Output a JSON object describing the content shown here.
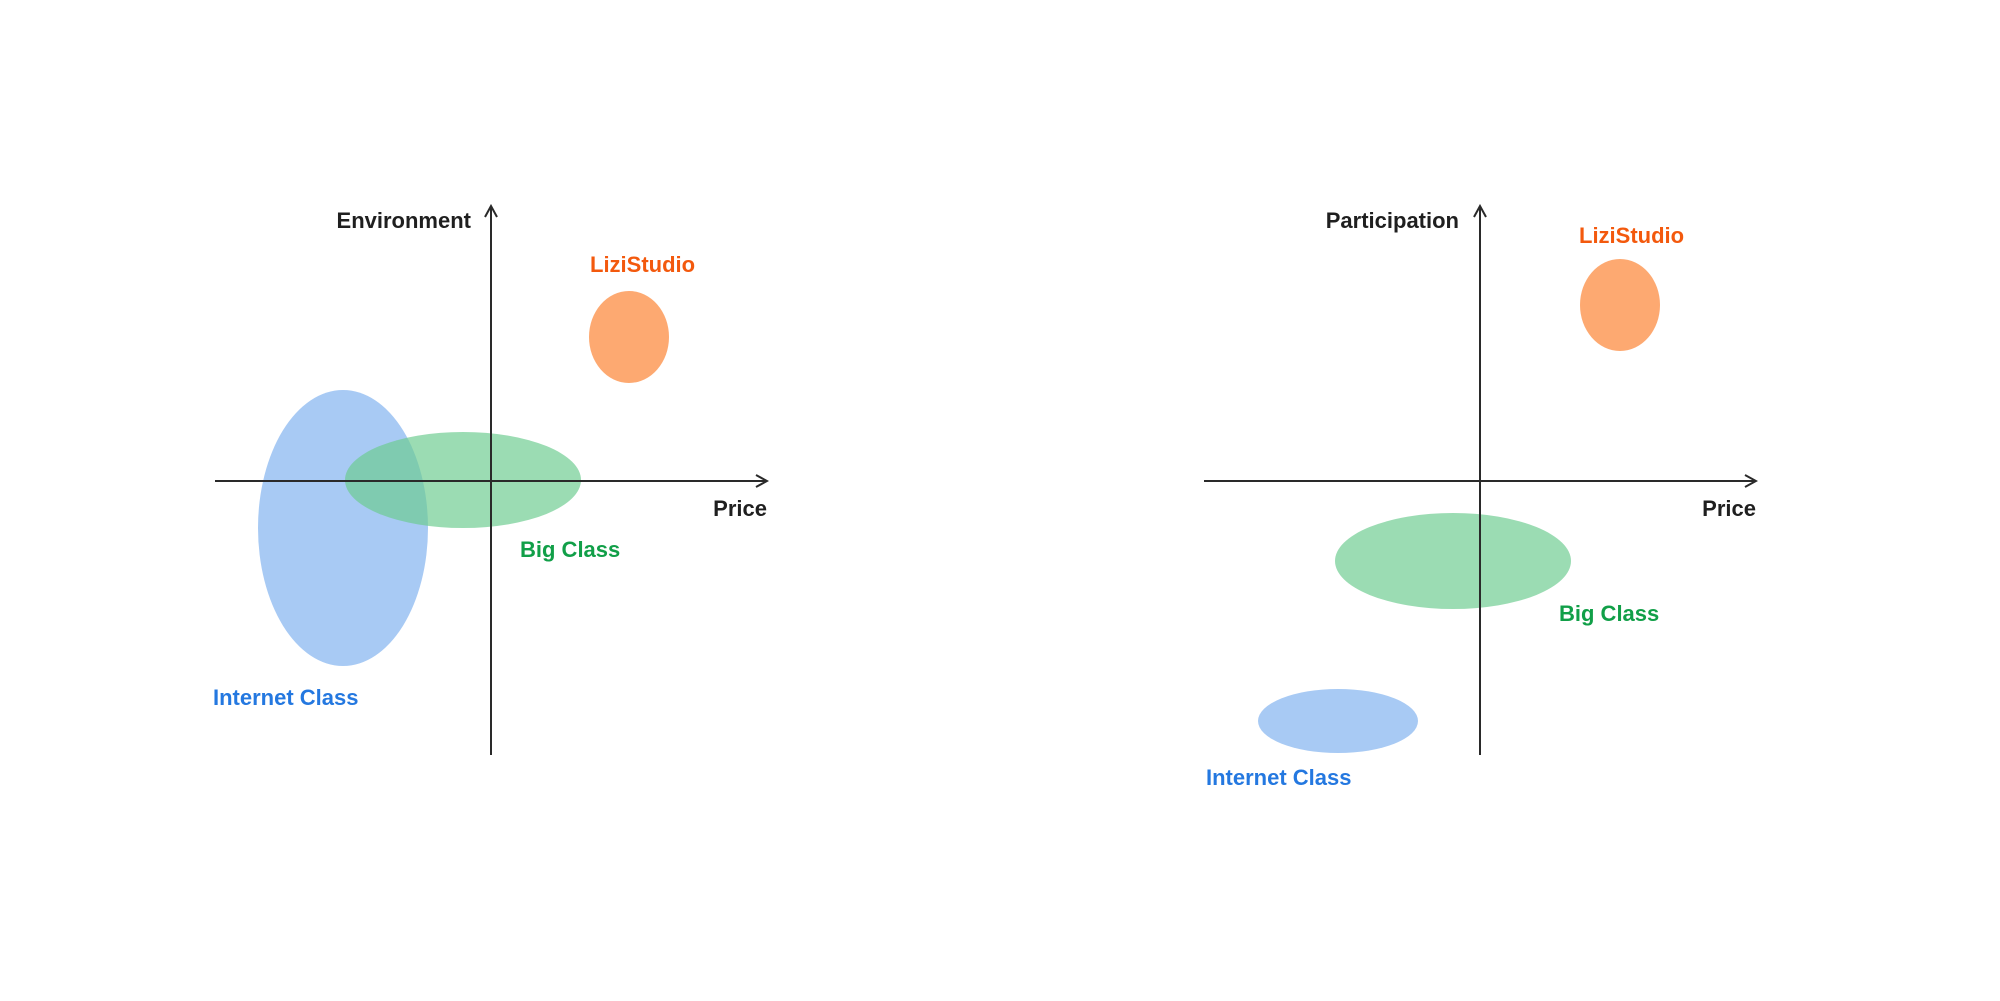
{
  "colors": {
    "axis": "#2a2a2a",
    "lizistudio_fill": "#fd9652",
    "lizistudio_text": "#f3590d",
    "bigclass_fill": "#6bcb8f",
    "bigclass_text": "#119f48",
    "internet_fill": "#7aaeee",
    "internet_text": "#2478e0"
  },
  "diagrams": [
    {
      "y_label": "Environment",
      "x_label": "Price",
      "groups": [
        {
          "name": "LiziStudio",
          "color_key": "lizistudio"
        },
        {
          "name": "Big Class",
          "color_key": "bigclass"
        },
        {
          "name": "Internet Class",
          "color_key": "internet"
        }
      ]
    },
    {
      "y_label": "Participation",
      "x_label": "Price",
      "groups": [
        {
          "name": "LiziStudio",
          "color_key": "lizistudio"
        },
        {
          "name": "Big Class",
          "color_key": "bigclass"
        },
        {
          "name": "Internet Class",
          "color_key": "internet"
        }
      ]
    }
  ]
}
